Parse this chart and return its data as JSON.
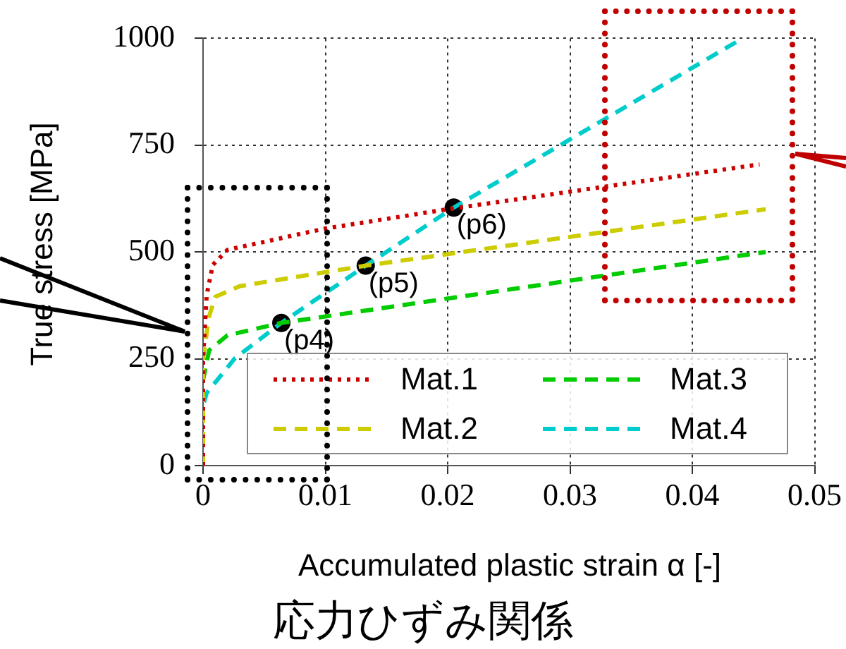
{
  "chart_data": {
    "type": "line",
    "title": "応力ひずみ関係",
    "xlabel": "Accumulated plastic strain α [-]",
    "ylabel": "True stress [MPa]",
    "xlim": [
      0,
      0.05
    ],
    "xticks": [
      0,
      0.01,
      0.02,
      0.03,
      0.04,
      0.05
    ],
    "ylim": [
      0,
      1000
    ],
    "yticks": [
      0,
      250,
      500,
      750,
      1000
    ],
    "grid": true,
    "legend": "bottom",
    "marker": "none",
    "series": [
      {
        "name": "Mat.1",
        "color": "#cc0000",
        "line_style": "dotted",
        "x": [
          0,
          0,
          0.0003,
          0.0008,
          0.002,
          0.01,
          0.02,
          0.0455
        ],
        "values": [
          0,
          250,
          400,
          470,
          505,
          555,
          600,
          705
        ]
      },
      {
        "name": "Mat.2",
        "color": "#cccc00",
        "line_style": "dashed",
        "x": [
          0,
          0,
          0.0005,
          0.001,
          0.003,
          0.0133,
          0.046
        ],
        "values": [
          0,
          250,
          350,
          395,
          420,
          468,
          600
        ]
      },
      {
        "name": "Mat.3",
        "color": "#00cc00",
        "line_style": "dashed",
        "x": [
          0,
          0,
          0.0005,
          0.002,
          0.0064,
          0.046
        ],
        "values": [
          0,
          200,
          270,
          305,
          334,
          500
        ]
      },
      {
        "name": "Mat.4",
        "color": "#00cccc",
        "line_style": "dashed",
        "x": [
          0,
          0,
          0.0003,
          0.0026,
          0.0064,
          0.0133,
          0.0205,
          0.0438
        ],
        "values": [
          0,
          140,
          170,
          251,
          334,
          468,
          604,
          995
        ]
      },
      {
        "type": "scatter",
        "color": "#000000",
        "marker": "circle",
        "x": [
          0.0064,
          0.0133,
          0.0205
        ],
        "values": [
          334,
          468,
          604
        ]
      }
    ],
    "annotations": [
      {
        "text": "(p4)",
        "x": 0.0064,
        "y": 334
      },
      {
        "text": "(p5)",
        "x": 0.0133,
        "y": 468
      },
      {
        "text": "(p6)",
        "x": 0.0205,
        "y": 604
      }
    ]
  }
}
